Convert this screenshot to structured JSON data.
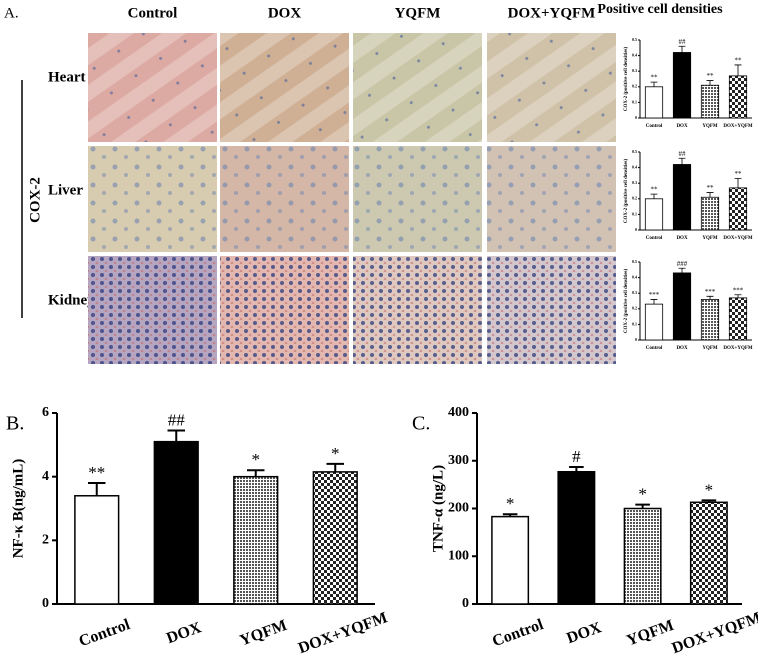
{
  "panel_a": {
    "label": "A.",
    "columns": [
      "Control",
      "DOX",
      "YQFM",
      "DOX+YQFM"
    ],
    "rows": [
      "Heart",
      "Liver",
      "Kidney"
    ],
    "row_group": "COX-2",
    "side_title": "Positive cell densities"
  },
  "panel_b": {
    "label": "B."
  },
  "panel_c": {
    "label": "C."
  },
  "chart_data": [
    {
      "type": "bar",
      "ylabel": "COX-2 (positive cell densities)",
      "categories": [
        "Control",
        "DOX",
        "YQFM",
        "DOX+YQFM"
      ],
      "values": [
        0.2,
        0.42,
        0.21,
        0.27
      ],
      "errors": [
        0.03,
        0.04,
        0.03,
        0.07
      ],
      "annotations": [
        "**",
        "##",
        "**",
        "**"
      ],
      "colors": [
        "#ffffff",
        "#000000",
        "#9a9a9a",
        "#6f6f6f"
      ],
      "patterns": [
        "none",
        "none",
        "dots",
        "checker"
      ],
      "ylim": [
        0,
        0.5
      ],
      "yticks": [
        0,
        0.1,
        0.2,
        0.3,
        0.4,
        0.5
      ]
    },
    {
      "type": "bar",
      "ylabel": "COX-2 (positive cell densities)",
      "categories": [
        "Control",
        "DOX",
        "YQFM",
        "DOX+YQFM"
      ],
      "values": [
        0.2,
        0.42,
        0.21,
        0.27
      ],
      "errors": [
        0.03,
        0.04,
        0.03,
        0.06
      ],
      "annotations": [
        "**",
        "##",
        "**",
        "**"
      ],
      "colors": [
        "#ffffff",
        "#000000",
        "#9a9a9a",
        "#6f6f6f"
      ],
      "patterns": [
        "none",
        "none",
        "dots",
        "checker"
      ],
      "ylim": [
        0,
        0.5
      ],
      "yticks": [
        0,
        0.1,
        0.2,
        0.3,
        0.4,
        0.5
      ]
    },
    {
      "type": "bar",
      "ylabel": "COX-2 (positive cell densities)",
      "categories": [
        "Control",
        "DOX",
        "YQFM",
        "DOX+YQFM"
      ],
      "values": [
        0.23,
        0.43,
        0.26,
        0.27
      ],
      "errors": [
        0.03,
        0.03,
        0.02,
        0.02
      ],
      "annotations": [
        "***",
        "###",
        "***",
        "***"
      ],
      "colors": [
        "#ffffff",
        "#000000",
        "#9a9a9a",
        "#6f6f6f"
      ],
      "patterns": [
        "none",
        "none",
        "dots",
        "checker"
      ],
      "ylim": [
        0,
        0.5
      ],
      "yticks": [
        0,
        0.1,
        0.2,
        0.3,
        0.4,
        0.5
      ]
    },
    {
      "type": "bar",
      "ylabel": "NF-κ B(ng/mL)",
      "categories": [
        "Control",
        "DOX",
        "YQFM",
        "DOX+YQFM"
      ],
      "values": [
        3.4,
        5.1,
        4.0,
        4.15
      ],
      "errors": [
        0.4,
        0.35,
        0.2,
        0.25
      ],
      "annotations": [
        "**",
        "##",
        "*",
        "*"
      ],
      "colors": [
        "#ffffff",
        "#000000",
        "#9a9a9a",
        "#6f6f6f"
      ],
      "patterns": [
        "none",
        "none",
        "dots",
        "checker"
      ],
      "ylim": [
        0,
        6
      ],
      "yticks": [
        0,
        2,
        4,
        6
      ]
    },
    {
      "type": "bar",
      "ylabel": "TNF-α (ng/L)",
      "categories": [
        "Control",
        "DOX",
        "YQFM",
        "DOX+YQFM"
      ],
      "values": [
        183,
        277,
        200,
        213
      ],
      "errors": [
        5,
        10,
        8,
        4
      ],
      "annotations": [
        "*",
        "#",
        "*",
        "*"
      ],
      "colors": [
        "#ffffff",
        "#000000",
        "#9a9a9a",
        "#6f6f6f"
      ],
      "patterns": [
        "none",
        "none",
        "dots",
        "checker"
      ],
      "ylim": [
        0,
        400
      ],
      "yticks": [
        0,
        100,
        200,
        300,
        400
      ]
    }
  ]
}
